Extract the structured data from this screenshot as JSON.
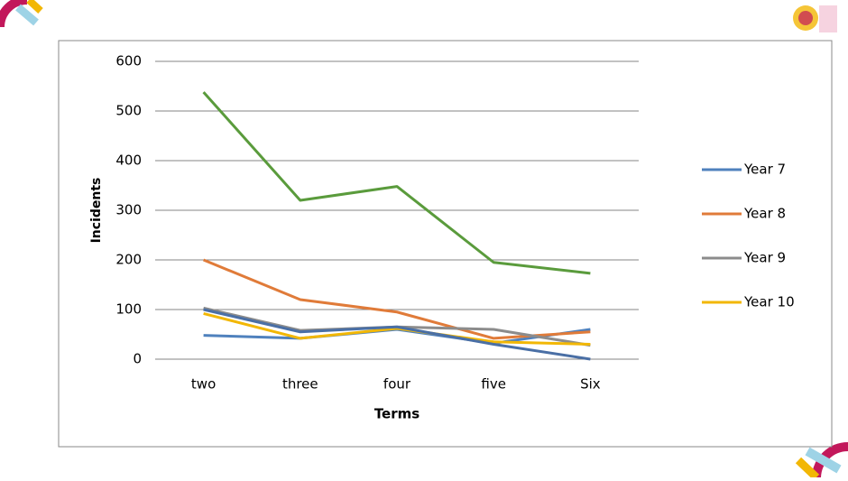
{
  "chart_data": {
    "type": "line",
    "x_label": "Terms",
    "y_label": "Incidents",
    "categories": [
      "two",
      "three",
      "four",
      "five",
      "Six"
    ],
    "series": [
      {
        "name": "Year 7",
        "color": "#4f81bd",
        "values": [
          48,
          42,
          60,
          32,
          60
        ]
      },
      {
        "name": "Year 8",
        "color": "#e07b39",
        "values": [
          200,
          120,
          95,
          42,
          55
        ]
      },
      {
        "name": "Year 9",
        "color": "#8c8c8c",
        "values": [
          103,
          58,
          65,
          60,
          28
        ]
      },
      {
        "name": "Year 10",
        "color": "#f2b705",
        "values": [
          92,
          42,
          62,
          35,
          30
        ]
      },
      {
        "color": "#5a9b3c",
        "values": [
          538,
          320,
          348,
          195,
          173
        ]
      },
      {
        "color": "#4a6fa5",
        "values": [
          100,
          55,
          65,
          30,
          0
        ]
      }
    ],
    "ylim": [
      0,
      600
    ],
    "yticks": [
      0,
      100,
      200,
      300,
      400,
      500,
      600
    ],
    "grid": true,
    "legend": "right"
  }
}
